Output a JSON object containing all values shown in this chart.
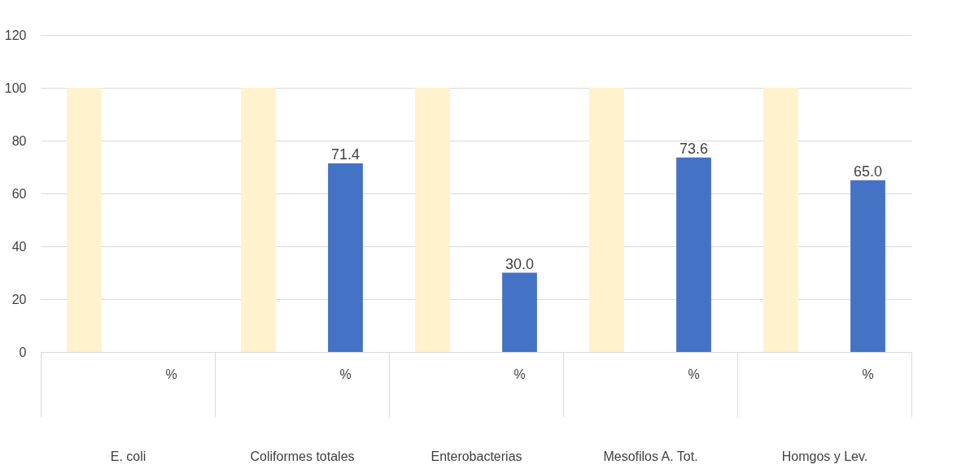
{
  "chart_data": {
    "type": "bar",
    "categories": [
      "E. coli",
      "Coliformes totales",
      "Enterobacterias",
      "Mesofilos A. Tot.",
      "Homgos y Lev."
    ],
    "series": [
      {
        "color": "#fff2cc",
        "values": [
          100,
          100,
          100,
          100,
          100
        ]
      },
      {
        "name": "%",
        "color": "#4472c4",
        "values": [
          null,
          71.4,
          30.0,
          73.6,
          65.0
        ],
        "value_labels": [
          null,
          "71.4",
          "30.0",
          "73.6",
          "65.0"
        ]
      }
    ],
    "ylim": [
      0,
      120
    ],
    "yticks": [
      0,
      20,
      40,
      60,
      80,
      100,
      120
    ],
    "grid": "y"
  }
}
